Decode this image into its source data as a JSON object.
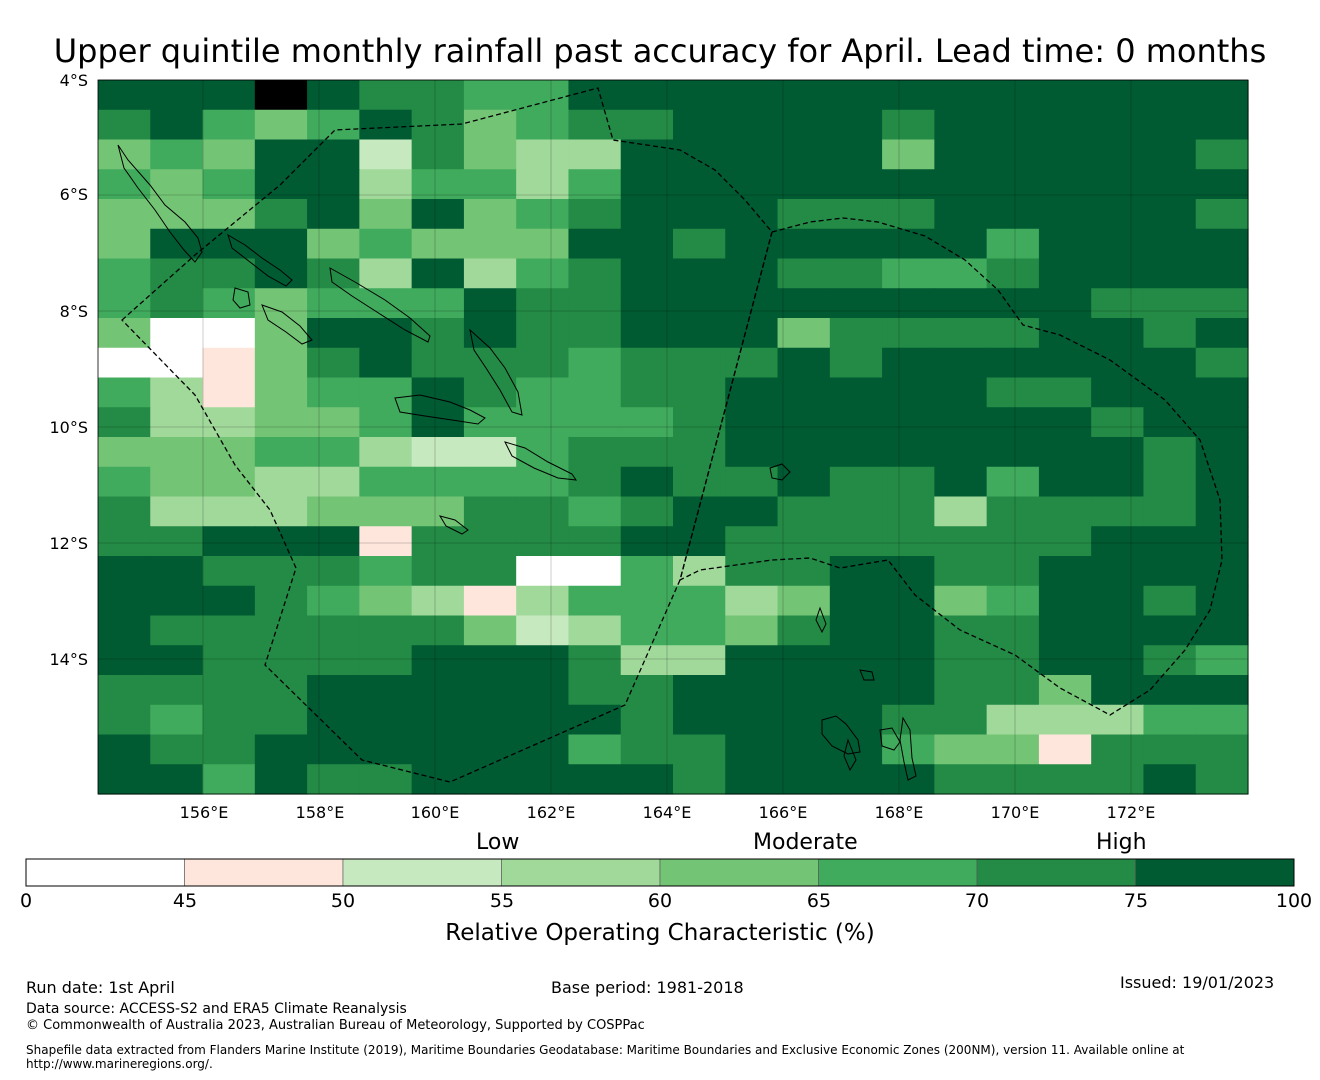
{
  "title": "Upper quintile monthly rainfall past accuracy for April. Lead time: 0 months",
  "map": {
    "lat_labels": [
      "4°S",
      "6°S",
      "8°S",
      "10°S",
      "12°S",
      "14°S"
    ],
    "lon_labels": [
      "156°E",
      "158°E",
      "160°E",
      "162°E",
      "164°E",
      "166°E",
      "168°E",
      "170°E",
      "172°E"
    ],
    "grid_rows": [
      "7778766557777777777777",
      "6754576456677776777777",
      "4547726433777774777776",
      "5457735535777777777777",
      "4446747456777666777776",
      "4777454447767777757777",
      "5667637356777665567777",
      "5654555766777777777666",
      "4004776766777466667767",
      "0014676665666767777776",
      "5314557655667777766777",
      "6334457555567777777677",
      "4445532256667777777767",
      "5443355556766766757767",
      "6333444665677666366667",
      "6677716666776666666777",
      "7766656600536677667777",
      "7776543135553477457767",
      "7666666423554677667777",
      "7766667776337777667765",
      "6666777776677777664777",
      "6566777777677776633355",
      "7667777775667775441666",
      "7757667777767777666676"
    ],
    "palette": [
      "#ffffff",
      "#fee6dc",
      "#c7e9c0",
      "#a1d99b",
      "#74c476",
      "#41ab5d",
      "#238b45",
      "#005a32"
    ]
  },
  "colorbar": {
    "categories": [
      "Low",
      "Moderate",
      "High"
    ],
    "ticks": [
      "0",
      "45",
      "50",
      "55",
      "60",
      "65",
      "70",
      "75",
      "100"
    ],
    "colors": [
      "#ffffff",
      "#fee6dc",
      "#c7e9c0",
      "#a1d99b",
      "#74c476",
      "#41ab5d",
      "#238b45",
      "#005a32"
    ],
    "label": "Relative Operating Characteristic (%)"
  },
  "footer": {
    "run_date": "Run date: 1st April",
    "base_period": "Base period: 1981-2018",
    "issued": "Issued: 19/01/2023",
    "data_source": "Data source: ACCESS-S2 and ERA5 Climate Reanalysis",
    "copyright": "© Commonwealth of Australia 2023, Australian Bureau of Meteorology, Supported by COSPPac",
    "shapefile_line1": "Shapefile data extracted from Flanders Marine Institute (2019), Maritime Boundaries Geodatabase: Maritime Boundaries and Exclusive Economic Zones (200NM), version 11. Available online at",
    "shapefile_line2": "http://www.marineregions.org/."
  }
}
